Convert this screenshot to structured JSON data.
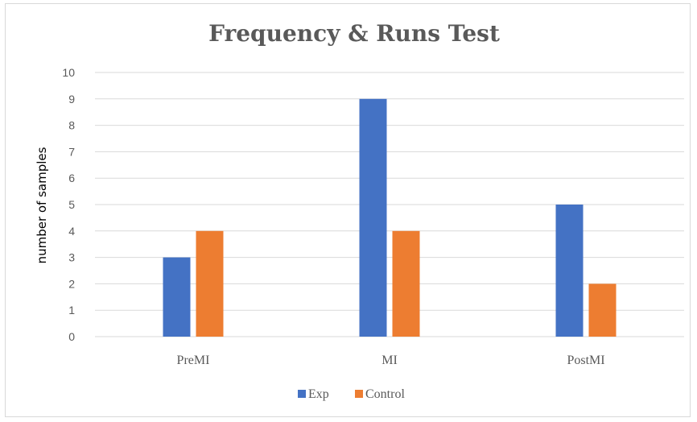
{
  "chart_data": {
    "type": "bar",
    "title": "Frequency & Runs Test",
    "xlabel": "",
    "ylabel": "number of samples",
    "categories": [
      "PreMI",
      "MI",
      "PostMI"
    ],
    "series": [
      {
        "name": "Exp",
        "values": [
          3,
          9,
          5
        ],
        "color": "#4472c4"
      },
      {
        "name": "Control",
        "values": [
          4,
          4,
          2
        ],
        "color": "#ed7d31"
      }
    ],
    "ylim": [
      0,
      10
    ],
    "yticks": [
      0,
      1,
      2,
      3,
      4,
      5,
      6,
      7,
      8,
      9,
      10
    ],
    "grid": true,
    "legend_position": "bottom",
    "gridline_color": "#d9d9d9"
  }
}
